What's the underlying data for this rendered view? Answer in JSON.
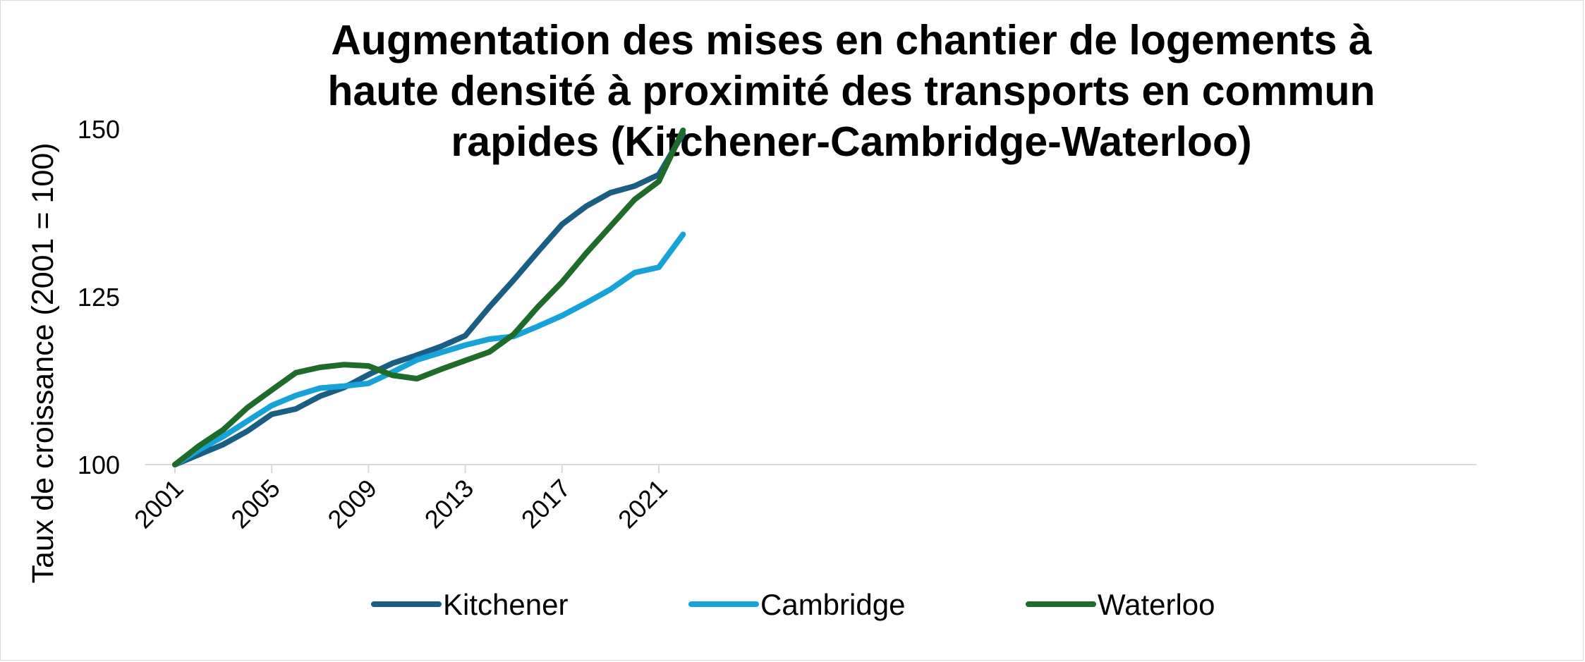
{
  "chart_data": {
    "type": "line",
    "title_lines": [
      "Augmentation des mises en chantier de logements à",
      "haute densité à proximité des transports en commun",
      "rapides (Kitchener-Cambridge-Waterloo)"
    ],
    "ylabel": "Taux de croissance (2001 = 100)",
    "xlabel": "",
    "x": [
      2001,
      2002,
      2003,
      2004,
      2005,
      2006,
      2007,
      2008,
      2009,
      2010,
      2011,
      2012,
      2013,
      2014,
      2015,
      2016,
      2017,
      2018,
      2019,
      2020,
      2021,
      2022
    ],
    "x_ticks": [
      "2001",
      "2005",
      "2009",
      "2013",
      "2017",
      "2021"
    ],
    "y_ticks": [
      "100",
      "125",
      "150"
    ],
    "ylim": [
      100,
      150
    ],
    "grid": false,
    "legend_position": "bottom",
    "series": [
      {
        "name": "Kitchener",
        "color": "#1b5e83",
        "values": [
          100,
          101.5,
          103,
          105,
          107.5,
          108.3,
          110.2,
          111.5,
          113.4,
          115.1,
          116.3,
          117.6,
          119.2,
          123.5,
          127.5,
          131.7,
          135.8,
          138.5,
          140.5,
          141.5,
          143.2,
          149.3
        ]
      },
      {
        "name": "Cambridge",
        "color": "#17a2d8",
        "values": [
          100,
          102.2,
          104.2,
          106.5,
          108.8,
          110.3,
          111.4,
          111.7,
          112.1,
          113.8,
          115.6,
          116.7,
          117.8,
          118.7,
          119.1,
          120.6,
          122.2,
          124.1,
          126.1,
          128.6,
          129.4,
          134.3
        ]
      },
      {
        "name": "Waterloo",
        "color": "#1e6b2a",
        "values": [
          100,
          102.8,
          105.2,
          108.5,
          111.1,
          113.7,
          114.5,
          114.9,
          114.7,
          113.3,
          112.8,
          114.2,
          115.5,
          116.8,
          119.4,
          123.5,
          127.2,
          131.5,
          135.5,
          139.5,
          142.2,
          149.8
        ]
      }
    ]
  }
}
